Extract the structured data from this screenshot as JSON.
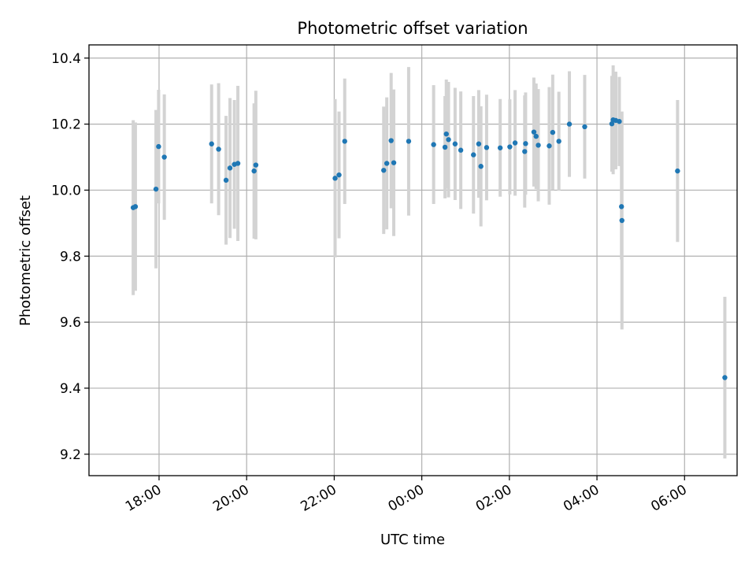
{
  "chart_data": {
    "type": "scatter",
    "title": "Photometric offset variation",
    "xlabel": "UTC time",
    "ylabel": "Photometric offset",
    "x_unit": "hours after 00:00 UTC",
    "xlim": [
      -7.6,
      7.2
    ],
    "ylim": [
      9.135,
      10.44
    ],
    "x_ticks": [
      {
        "value": -6,
        "label": "18:00"
      },
      {
        "value": -4,
        "label": "20:00"
      },
      {
        "value": -2,
        "label": "22:00"
      },
      {
        "value": 0,
        "label": "00:00"
      },
      {
        "value": 2,
        "label": "02:00"
      },
      {
        "value": 4,
        "label": "04:00"
      },
      {
        "value": 6,
        "label": "06:00"
      }
    ],
    "y_ticks": [
      {
        "value": 9.2,
        "label": "9.2"
      },
      {
        "value": 9.4,
        "label": "9.4"
      },
      {
        "value": 9.6,
        "label": "9.6"
      },
      {
        "value": 9.8,
        "label": "9.8"
      },
      {
        "value": 10.0,
        "label": "10.0"
      },
      {
        "value": 10.2,
        "label": "10.2"
      },
      {
        "value": 10.4,
        "label": "10.4"
      }
    ],
    "grid": true,
    "colors": {
      "marker": "#1f77b4",
      "error_bar": "#d3d3d3",
      "grid": "#b0b0b0",
      "axes": "#000000"
    },
    "points": [
      {
        "x": -6.59,
        "y": 9.947,
        "yerr": 0.265
      },
      {
        "x": -6.54,
        "y": 9.95,
        "yerr": 0.255
      },
      {
        "x": -6.07,
        "y": 10.003,
        "yerr": 0.24
      },
      {
        "x": -6.01,
        "y": 10.132,
        "yerr": 0.172
      },
      {
        "x": -5.88,
        "y": 10.1,
        "yerr": 0.19
      },
      {
        "x": -4.8,
        "y": 10.14,
        "yerr": 0.18
      },
      {
        "x": -4.64,
        "y": 10.124,
        "yerr": 0.2
      },
      {
        "x": -4.47,
        "y": 10.03,
        "yerr": 0.195
      },
      {
        "x": -4.38,
        "y": 10.067,
        "yerr": 0.212
      },
      {
        "x": -4.28,
        "y": 10.078,
        "yerr": 0.195
      },
      {
        "x": -4.2,
        "y": 10.081,
        "yerr": 0.235
      },
      {
        "x": -3.83,
        "y": 10.058,
        "yerr": 0.205
      },
      {
        "x": -3.79,
        "y": 10.076,
        "yerr": 0.225
      },
      {
        "x": -1.98,
        "y": 10.036,
        "yerr": 0.24
      },
      {
        "x": -1.89,
        "y": 10.046,
        "yerr": 0.192
      },
      {
        "x": -1.76,
        "y": 10.148,
        "yerr": 0.19
      },
      {
        "x": -0.87,
        "y": 10.06,
        "yerr": 0.193
      },
      {
        "x": -0.8,
        "y": 10.081,
        "yerr": 0.2
      },
      {
        "x": -0.7,
        "y": 10.15,
        "yerr": 0.205
      },
      {
        "x": -0.64,
        "y": 10.083,
        "yerr": 0.222
      },
      {
        "x": -0.3,
        "y": 10.148,
        "yerr": 0.225
      },
      {
        "x": 0.27,
        "y": 10.138,
        "yerr": 0.18
      },
      {
        "x": 0.53,
        "y": 10.13,
        "yerr": 0.155
      },
      {
        "x": 0.56,
        "y": 10.17,
        "yerr": 0.165
      },
      {
        "x": 0.61,
        "y": 10.153,
        "yerr": 0.175
      },
      {
        "x": 0.76,
        "y": 10.14,
        "yerr": 0.17
      },
      {
        "x": 0.89,
        "y": 10.121,
        "yerr": 0.178
      },
      {
        "x": 1.18,
        "y": 10.107,
        "yerr": 0.178
      },
      {
        "x": 1.3,
        "y": 10.14,
        "yerr": 0.163
      },
      {
        "x": 1.35,
        "y": 10.072,
        "yerr": 0.182
      },
      {
        "x": 1.48,
        "y": 10.129,
        "yerr": 0.16
      },
      {
        "x": 1.79,
        "y": 10.128,
        "yerr": 0.148
      },
      {
        "x": 2.01,
        "y": 10.131,
        "yerr": 0.144
      },
      {
        "x": 2.13,
        "y": 10.143,
        "yerr": 0.16
      },
      {
        "x": 2.35,
        "y": 10.117,
        "yerr": 0.17
      },
      {
        "x": 2.37,
        "y": 10.141,
        "yerr": 0.155
      },
      {
        "x": 2.56,
        "y": 10.176,
        "yerr": 0.165
      },
      {
        "x": 2.61,
        "y": 10.163,
        "yerr": 0.16
      },
      {
        "x": 2.66,
        "y": 10.136,
        "yerr": 0.17
      },
      {
        "x": 2.91,
        "y": 10.134,
        "yerr": 0.178
      },
      {
        "x": 2.99,
        "y": 10.175,
        "yerr": 0.175
      },
      {
        "x": 3.13,
        "y": 10.148,
        "yerr": 0.15
      },
      {
        "x": 3.37,
        "y": 10.2,
        "yerr": 0.16
      },
      {
        "x": 3.72,
        "y": 10.192,
        "yerr": 0.157
      },
      {
        "x": 4.34,
        "y": 10.201,
        "yerr": 0.145
      },
      {
        "x": 4.37,
        "y": 10.213,
        "yerr": 0.165
      },
      {
        "x": 4.43,
        "y": 10.211,
        "yerr": 0.148
      },
      {
        "x": 4.51,
        "y": 10.208,
        "yerr": 0.135
      },
      {
        "x": 4.56,
        "y": 9.95,
        "yerr": 0.16
      },
      {
        "x": 4.57,
        "y": 9.908,
        "yerr": 0.33
      },
      {
        "x": 5.84,
        "y": 10.058,
        "yerr": 0.215
      },
      {
        "x": 6.92,
        "y": 9.432,
        "yerr": 0.245
      }
    ]
  }
}
